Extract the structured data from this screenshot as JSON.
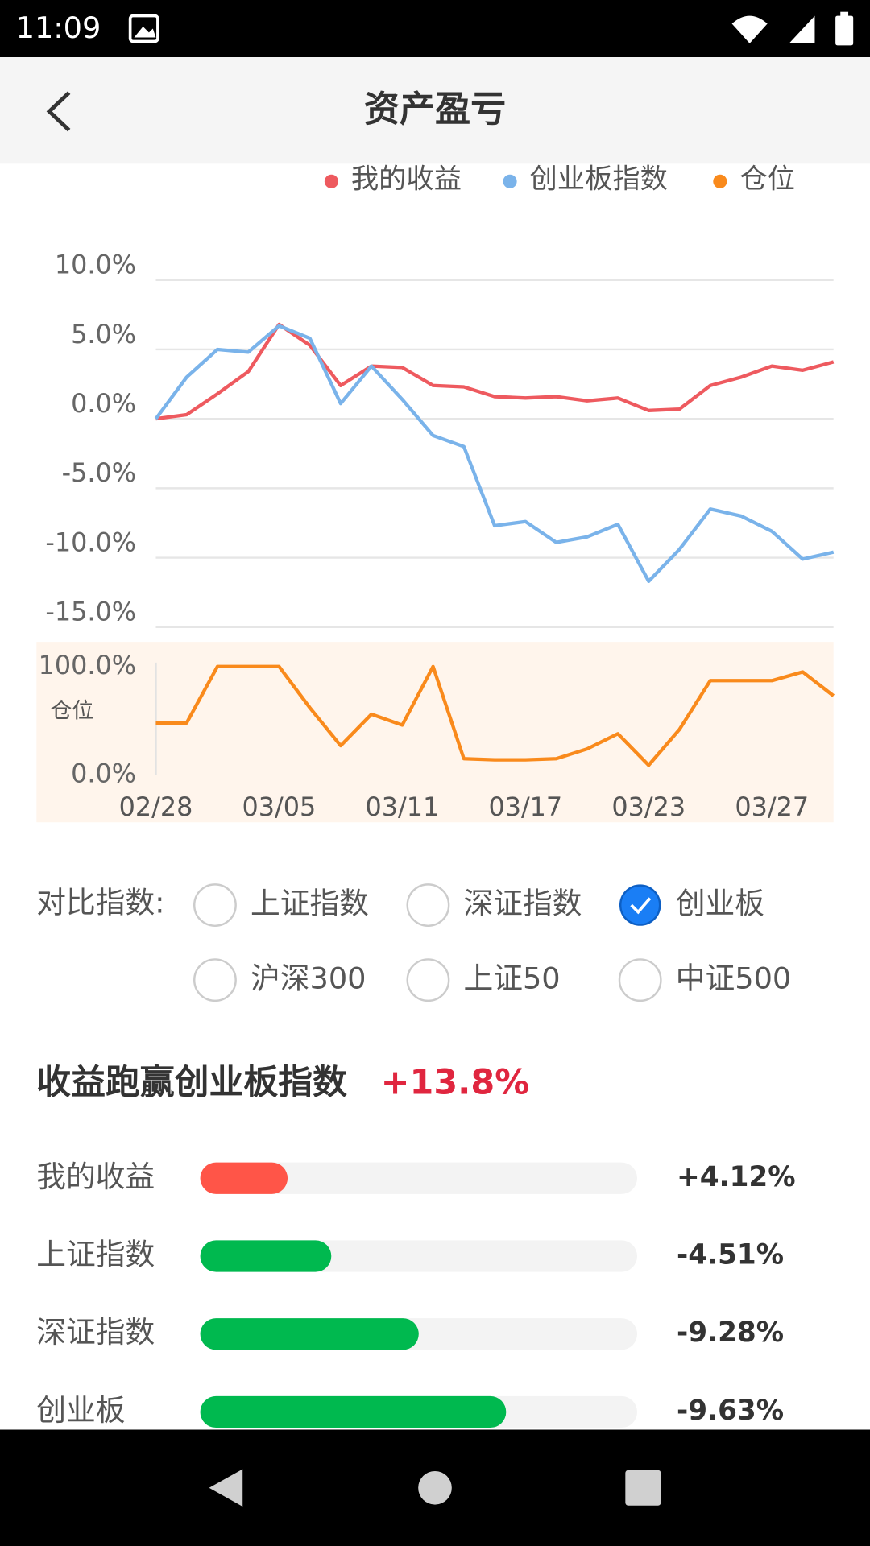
{
  "status_bar": {
    "time": "11:09"
  },
  "header": {
    "title": "资产盈亏"
  },
  "chart_data": [
    {
      "type": "line",
      "grid": true,
      "ylim": [
        -15,
        10
      ],
      "yticks": [
        {
          "value": 10,
          "label": "10.0%"
        },
        {
          "value": 5,
          "label": "5.0%"
        },
        {
          "value": 0,
          "label": "0.0%"
        },
        {
          "value": -5,
          "label": "-5.0%"
        },
        {
          "value": -10,
          "label": "-10.0%"
        },
        {
          "value": -15,
          "label": "-15.0%"
        }
      ],
      "series": [
        {
          "name": "我的收益",
          "color": "#ee5a5f",
          "values": [
            0,
            0.3,
            1.8,
            3.4,
            6.8,
            5.3,
            2.4,
            3.8,
            3.7,
            2.4,
            2.3,
            1.6,
            1.5,
            1.6,
            1.3,
            1.5,
            0.6,
            0.7,
            2.4,
            3.0,
            3.8,
            3.5,
            4.1
          ]
        },
        {
          "name": "创业板指数",
          "color": "#7ab3ea",
          "values": [
            0,
            3.0,
            5.0,
            4.8,
            6.7,
            5.8,
            1.1,
            3.8,
            1.4,
            -1.2,
            -2.0,
            -7.7,
            -7.4,
            -8.9,
            -8.5,
            -7.6,
            -11.7,
            -9.4,
            -6.5,
            -7.0,
            -8.1,
            -10.1,
            -9.6
          ]
        }
      ]
    },
    {
      "type": "line",
      "ylabel": "仓位",
      "ylim": [
        0,
        100
      ],
      "yticks": [
        {
          "value": 100,
          "label": "100.0%"
        },
        {
          "value": 0,
          "label": "0.0%"
        }
      ],
      "categories": [
        "02/28",
        null,
        null,
        null,
        "03/05",
        null,
        null,
        null,
        "03/11",
        null,
        null,
        null,
        "03/17",
        null,
        null,
        null,
        "03/23",
        null,
        null,
        null,
        "03/27",
        null,
        null
      ],
      "series": [
        {
          "name": "仓位",
          "color": "#f98a1c",
          "values": [
            48,
            48,
            100,
            100,
            100,
            62,
            27,
            56,
            46,
            100,
            15,
            14,
            14,
            15,
            24,
            38,
            9,
            42,
            87,
            87,
            87,
            95,
            73
          ]
        }
      ]
    }
  ],
  "compare": {
    "label": "对比指数:",
    "options": [
      {
        "name": "上证指数",
        "checked": false
      },
      {
        "name": "深证指数",
        "checked": false
      },
      {
        "name": "创业板",
        "checked": true
      },
      {
        "name": "沪深300",
        "checked": false
      },
      {
        "name": "上证50",
        "checked": false
      },
      {
        "name": "中证500",
        "checked": false
      }
    ]
  },
  "summary": {
    "title": "收益跑赢创业板指数",
    "value": "+13.8%",
    "rows": [
      {
        "name": "我的收益",
        "change": "+4.12%",
        "fill": 20,
        "color": "#ff5548"
      },
      {
        "name": "上证指数",
        "change": "-4.51%",
        "fill": 30,
        "color": "#00b94f"
      },
      {
        "name": "深证指数",
        "change": "-9.28%",
        "fill": 50,
        "color": "#00b94f"
      },
      {
        "name": "创业板",
        "change": "-9.63%",
        "fill": 70,
        "color": "#00b94f"
      }
    ]
  }
}
